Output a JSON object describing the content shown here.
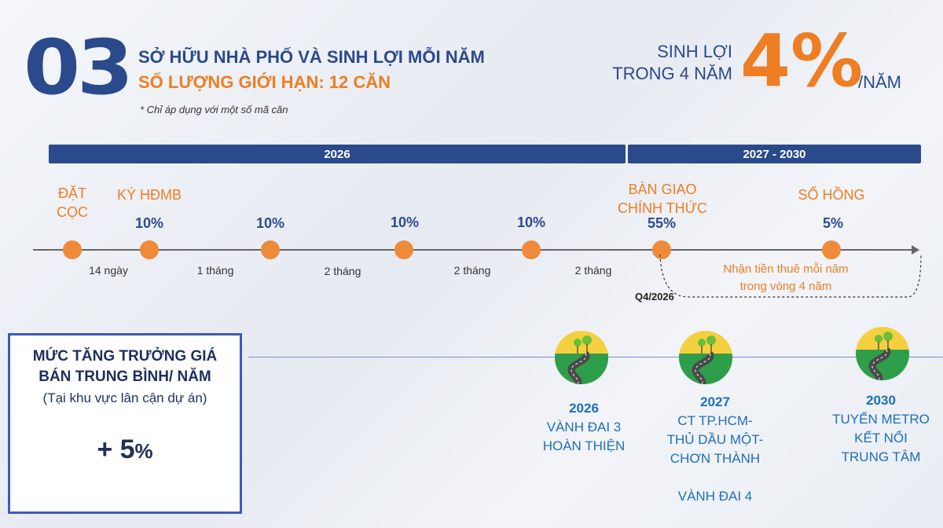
{
  "header": {
    "number": "03",
    "title_line1": "SỞ HỮU NHÀ PHỐ VÀ SINH LỢI MỖI NĂM",
    "title_line2": "SỐ LƯỢNG GIỚI HẠN: 12 CĂN",
    "note": "* Chỉ áp dụng với một số mã căn"
  },
  "yield": {
    "label_line1": "SINH LỢI",
    "label_line2": "TRONG 4 NĂM",
    "value": "4%",
    "unit": "/NĂM"
  },
  "periods": [
    {
      "label": "2026"
    },
    {
      "label": "2027 - 2030"
    }
  ],
  "events": [
    {
      "label_line1": "ĐẶT",
      "label_line2": "CỌC",
      "pct": ""
    },
    {
      "label_line1": "KÝ HĐMB",
      "label_line2": "",
      "pct": "10%"
    },
    {
      "label_line1": "",
      "label_line2": "",
      "pct": "10%"
    },
    {
      "label_line1": "",
      "label_line2": "",
      "pct": "10%"
    },
    {
      "label_line1": "",
      "label_line2": "",
      "pct": "10%"
    },
    {
      "label_line1": "BÀN GIAO",
      "label_line2": "CHÍNH THỨC",
      "pct": "55%"
    },
    {
      "label_line1": "SỔ HỒNG",
      "label_line2": "",
      "pct": "5%"
    }
  ],
  "durations": [
    "14 ngày",
    "1 tháng",
    "2 tháng",
    "2 tháng",
    "2 tháng"
  ],
  "rent_note_line1": "Nhận tiền thuê mỗi năm",
  "rent_note_line2": "trong vòng 4 năm",
  "handover_date": "Q4/2026",
  "growth": {
    "title_line1": "MỨC TĂNG TRƯỞNG GIÁ",
    "title_line2": "BÁN TRUNG BÌNH/ NĂM",
    "subtitle": "(Tại khu vực lân cận dự án)",
    "value_prefix": "+ 5",
    "value_suffix": "%"
  },
  "milestones": [
    {
      "year": "2026",
      "lines": [
        "VÀNH ĐAI 3",
        "HOÀN THIỆN"
      ]
    },
    {
      "year": "2027",
      "lines": [
        "CT TP.HCM-",
        "THỦ DẦU MỘT-",
        "CHƠN THÀNH",
        "",
        "VÀNH ĐAI 4"
      ]
    },
    {
      "year": "2030",
      "lines": [
        "TUYẾN METRO",
        "KẾT NỐI",
        "TRUNG TÂM"
      ]
    }
  ],
  "colors": {
    "navy": "#2b4a8b",
    "orange": "#ef7d22",
    "blue_text": "#1e6fb8"
  }
}
